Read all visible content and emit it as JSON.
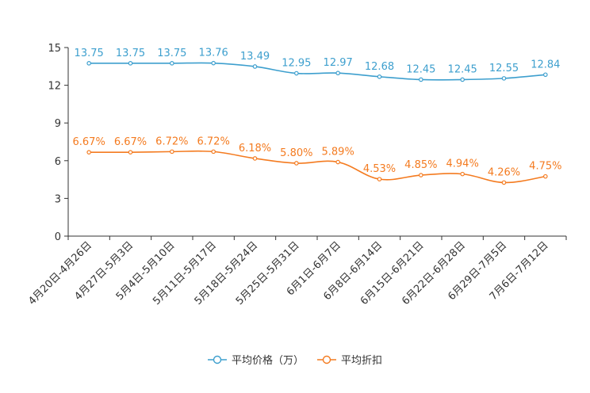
{
  "chart_data": {
    "type": "line",
    "categories": [
      "4月20日-4月26日",
      "4月27日-5月3日",
      "5月4日-5月10日",
      "5月11日-5月17日",
      "5月18日-5月24日",
      "5月25日-5月31日",
      "6月1日-6月7日",
      "6月8日-6月14日",
      "6月15日-6月21日",
      "6月22日-6月28日",
      "6月29日-7月5日",
      "7月6日-7月12日"
    ],
    "ylim": [
      0,
      15
    ],
    "yticks": [
      0,
      3,
      6,
      9,
      12,
      15
    ],
    "legend_position": "bottom-center",
    "series": [
      {
        "name": "平均价格（万）",
        "color": "#3d9fce",
        "values": [
          13.75,
          13.75,
          13.75,
          13.76,
          13.49,
          12.95,
          12.97,
          12.68,
          12.45,
          12.45,
          12.55,
          12.84
        ],
        "labels": [
          "13.75",
          "13.75",
          "13.75",
          "13.76",
          "13.49",
          "12.95",
          "12.97",
          "12.68",
          "12.45",
          "12.45",
          "12.55",
          "12.84"
        ]
      },
      {
        "name": "平均折扣",
        "color": "#f47b20",
        "values": [
          6.67,
          6.67,
          6.72,
          6.72,
          6.18,
          5.8,
          5.89,
          4.53,
          4.85,
          4.94,
          4.26,
          4.75
        ],
        "labels": [
          "6.67%",
          "6.67%",
          "6.72%",
          "6.72%",
          "6.18%",
          "5.80%",
          "5.89%",
          "4.53%",
          "4.85%",
          "4.94%",
          "4.26%",
          "4.75%"
        ]
      }
    ]
  }
}
